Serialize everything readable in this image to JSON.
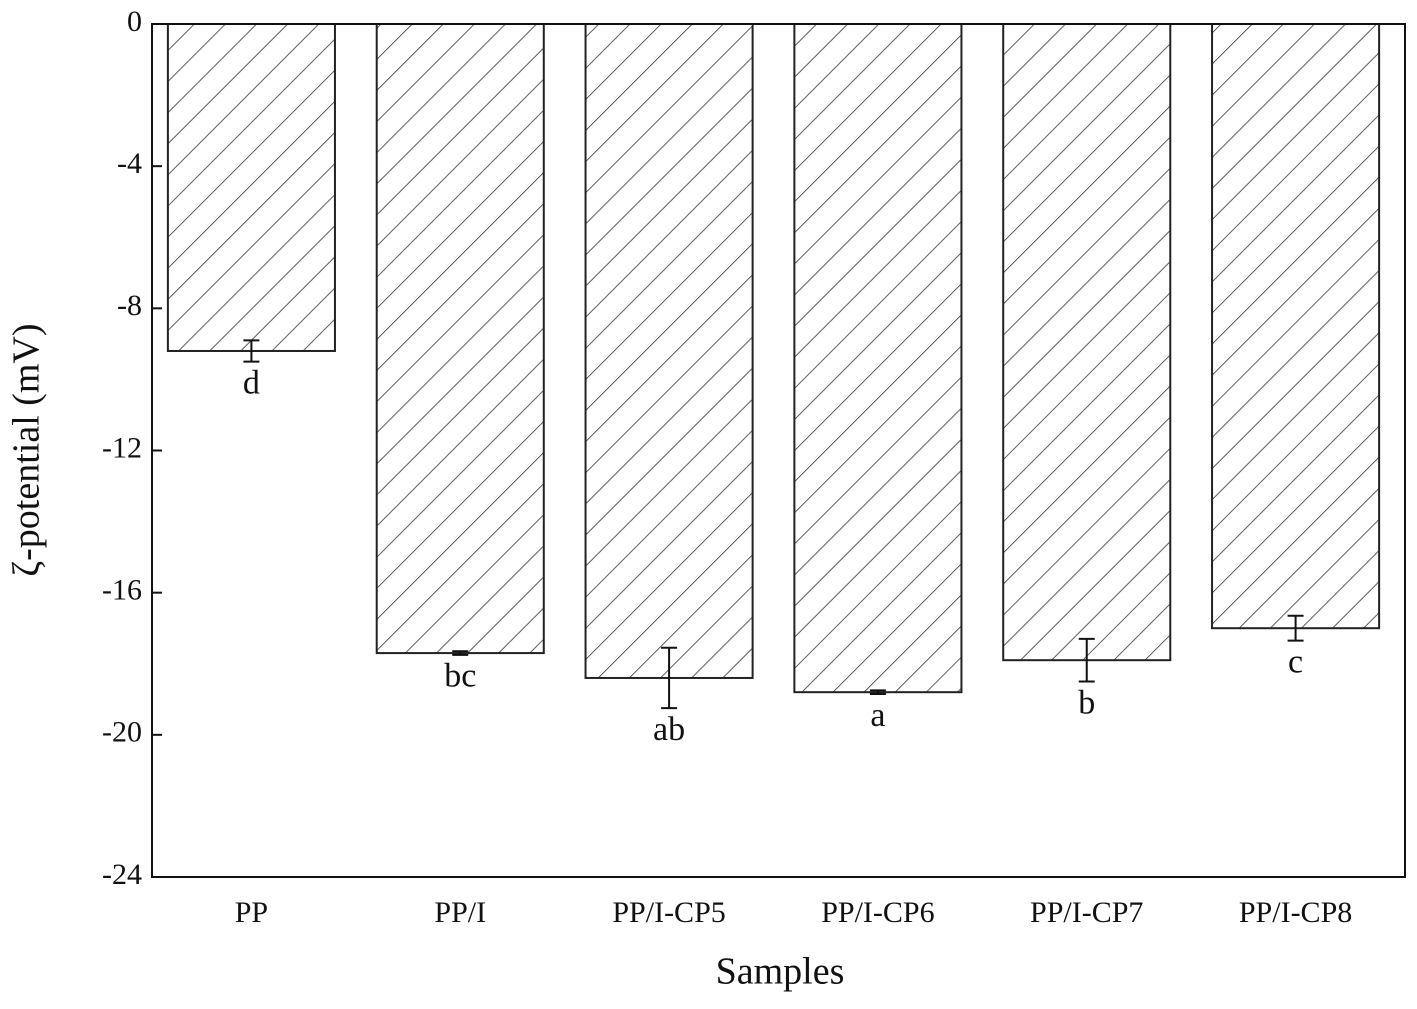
{
  "chart_data": {
    "type": "bar",
    "x_label": "Samples",
    "y_label": "ζ-potential (mV)",
    "categories": [
      "PP",
      "PP/I",
      "PP/I-CP5",
      "PP/I-CP6",
      "PP/I-CP7",
      "PP/I-CP8"
    ],
    "values": [
      -9.2,
      -17.7,
      -18.4,
      -18.8,
      -17.9,
      -17.0
    ],
    "errors": [
      0.3,
      0.05,
      0.85,
      0.05,
      0.6,
      0.35
    ],
    "letters": [
      "d",
      "bc",
      "ab",
      "a",
      "b",
      "c"
    ],
    "color": "#333333",
    "ylim": [
      -24,
      0
    ],
    "yticks": [
      0,
      -4,
      -8,
      -12,
      -16,
      -20,
      -24
    ]
  }
}
